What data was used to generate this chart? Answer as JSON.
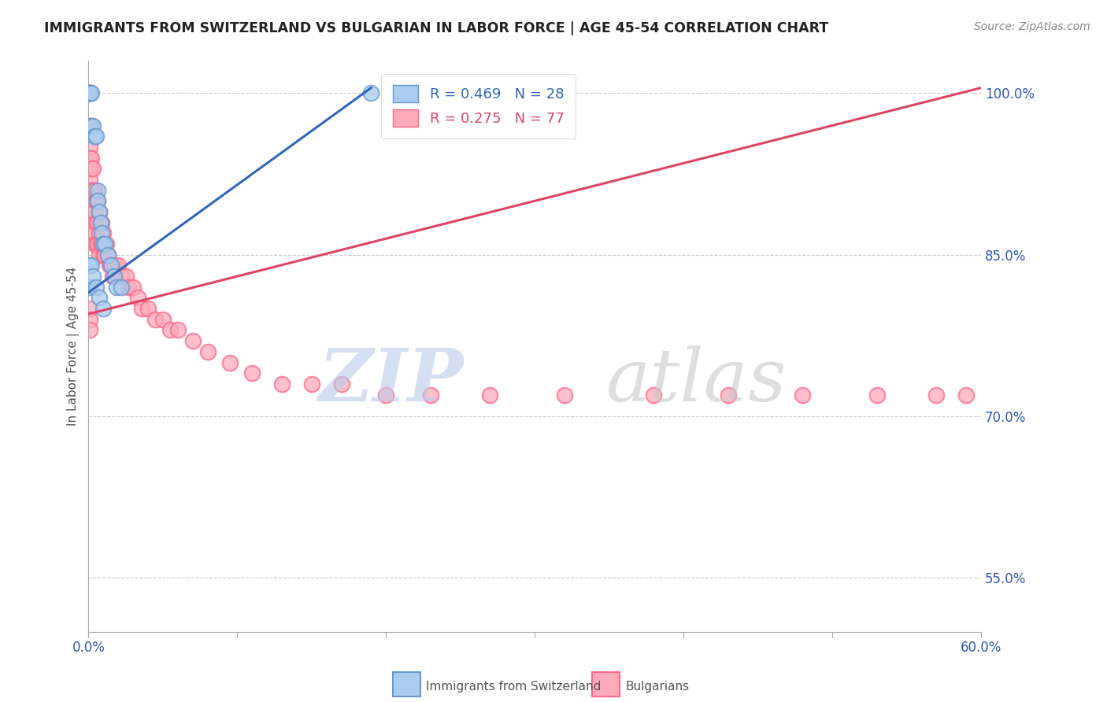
{
  "title": "IMMIGRANTS FROM SWITZERLAND VS BULGARIAN IN LABOR FORCE | AGE 45-54 CORRELATION CHART",
  "source": "Source: ZipAtlas.com",
  "ylabel": "In Labor Force | Age 45-54",
  "xlim": [
    0.0,
    0.6
  ],
  "ylim": [
    0.5,
    1.03
  ],
  "right_yticks": [
    1.0,
    0.85,
    0.7,
    0.55
  ],
  "right_yticklabels": [
    "100.0%",
    "85.0%",
    "70.0%",
    "55.0%"
  ],
  "xticks": [
    0.0,
    0.1,
    0.2,
    0.3,
    0.4,
    0.5,
    0.6
  ],
  "xticklabels": [
    "0.0%",
    "",
    "",
    "",
    "",
    "",
    "60.0%"
  ],
  "grid_color": "#cccccc",
  "background_color": "#ffffff",
  "swiss_color": "#6699cc",
  "swiss_fill": "#aaccee",
  "bulg_color": "#ff6688",
  "bulg_fill": "#ffaabb",
  "swiss_R": 0.469,
  "swiss_N": 28,
  "bulg_R": 0.275,
  "bulg_N": 77,
  "swiss_line_color": "#3366bb",
  "bulg_line_color": "#dd4466",
  "swiss_line": {
    "x0": 0.0,
    "y0": 0.815,
    "x1": 0.19,
    "y1": 1.005
  },
  "bulg_line": {
    "x0": 0.0,
    "y0": 0.795,
    "x1": 0.6,
    "y1": 1.005
  },
  "swiss_x": [
    0.001,
    0.001,
    0.001,
    0.002,
    0.002,
    0.003,
    0.004,
    0.005,
    0.006,
    0.006,
    0.007,
    0.008,
    0.009,
    0.01,
    0.011,
    0.013,
    0.015,
    0.017,
    0.019,
    0.022,
    0.001,
    0.001,
    0.002,
    0.003,
    0.005,
    0.007,
    0.01,
    0.19
  ],
  "swiss_y": [
    1.0,
    1.0,
    1.0,
    1.0,
    0.97,
    0.97,
    0.96,
    0.96,
    0.91,
    0.9,
    0.89,
    0.88,
    0.87,
    0.86,
    0.86,
    0.85,
    0.84,
    0.83,
    0.82,
    0.82,
    0.84,
    0.82,
    0.84,
    0.83,
    0.82,
    0.81,
    0.8,
    1.0
  ],
  "bulg_x": [
    0.001,
    0.001,
    0.001,
    0.001,
    0.001,
    0.001,
    0.001,
    0.001,
    0.001,
    0.002,
    0.002,
    0.002,
    0.002,
    0.003,
    0.003,
    0.003,
    0.003,
    0.003,
    0.004,
    0.004,
    0.004,
    0.004,
    0.005,
    0.005,
    0.005,
    0.006,
    0.006,
    0.006,
    0.007,
    0.007,
    0.007,
    0.008,
    0.008,
    0.009,
    0.009,
    0.01,
    0.01,
    0.011,
    0.012,
    0.013,
    0.014,
    0.015,
    0.016,
    0.017,
    0.018,
    0.02,
    0.022,
    0.025,
    0.027,
    0.03,
    0.033,
    0.036,
    0.04,
    0.045,
    0.05,
    0.055,
    0.06,
    0.07,
    0.08,
    0.095,
    0.11,
    0.13,
    0.15,
    0.17,
    0.2,
    0.23,
    0.27,
    0.32,
    0.38,
    0.43,
    0.48,
    0.53,
    0.57,
    0.59,
    0.001,
    0.001,
    0.001
  ],
  "bulg_y": [
    1.0,
    1.0,
    1.0,
    0.97,
    0.97,
    0.95,
    0.94,
    0.93,
    0.92,
    0.94,
    0.93,
    0.91,
    0.9,
    0.93,
    0.91,
    0.89,
    0.88,
    0.87,
    0.91,
    0.89,
    0.87,
    0.86,
    0.9,
    0.88,
    0.86,
    0.9,
    0.88,
    0.86,
    0.89,
    0.87,
    0.85,
    0.88,
    0.86,
    0.88,
    0.86,
    0.87,
    0.85,
    0.85,
    0.86,
    0.85,
    0.84,
    0.84,
    0.83,
    0.84,
    0.83,
    0.84,
    0.83,
    0.83,
    0.82,
    0.82,
    0.81,
    0.8,
    0.8,
    0.79,
    0.79,
    0.78,
    0.78,
    0.77,
    0.76,
    0.75,
    0.74,
    0.73,
    0.73,
    0.73,
    0.72,
    0.72,
    0.72,
    0.72,
    0.72,
    0.72,
    0.72,
    0.72,
    0.72,
    0.72,
    0.8,
    0.79,
    0.78
  ],
  "watermark_zip": "ZIP",
  "watermark_atlas": "atlas",
  "legend_label_swiss": "Immigrants from Switzerland",
  "legend_label_bulg": "Bulgarians"
}
